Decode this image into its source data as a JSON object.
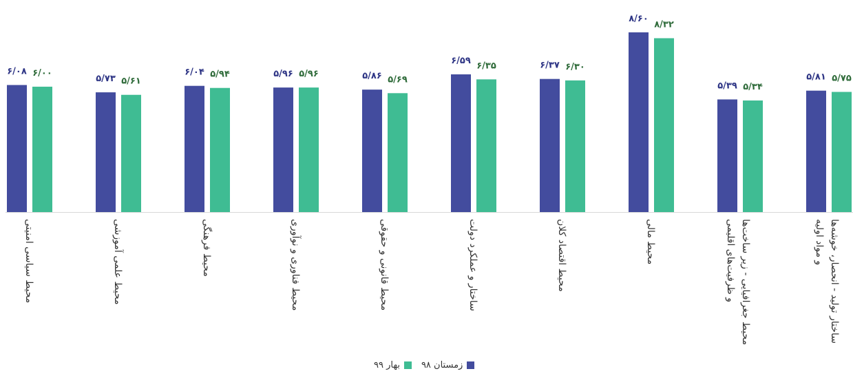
{
  "chart_data": {
    "type": "bar",
    "categories": [
      [
        "محیط سیاسی امنیتی"
      ],
      [
        "محیط علمی آموزشی"
      ],
      [
        "محیط فرهنگی"
      ],
      [
        "محیط فناوری و نوآوری"
      ],
      [
        "محیط قانونی و حقوقی"
      ],
      [
        "ساختار و عملکرد دولت"
      ],
      [
        "محیط اقتصاد کلان"
      ],
      [
        "محیط مالی"
      ],
      [
        "محیط جغرافیایی - زیر ساخت‌ها",
        "و ظرفیت‌های اقلیمی"
      ],
      [
        "ساختار تولید - انحصار، خوشه‌ها",
        "و مواد اولیه"
      ]
    ],
    "series": [
      {
        "name": "زمستان ۹۸",
        "color": "#434C9E",
        "values": [
          6.08,
          5.73,
          6.04,
          5.96,
          5.86,
          6.59,
          6.37,
          8.6,
          5.39,
          5.81
        ],
        "labels": [
          "۶/۰۸",
          "۵/۷۳",
          "۶/۰۴",
          "۵/۹۶",
          "۵/۸۶",
          "۶/۵۹",
          "۶/۳۷",
          "۸/۶۰",
          "۵/۳۹",
          "۵/۸۱"
        ]
      },
      {
        "name": "بهار ۹۹",
        "color": "#3FBC93",
        "values": [
          6.0,
          5.61,
          5.94,
          5.96,
          5.69,
          6.35,
          6.3,
          8.32,
          5.34,
          5.75
        ],
        "labels": [
          "۶/۰۰",
          "۵/۶۱",
          "۵/۹۴",
          "۵/۹۶",
          "۵/۶۹",
          "۶/۳۵",
          "۶/۳۰",
          "۸/۳۲",
          "۵/۳۴",
          "۵/۷۵"
        ]
      }
    ],
    "label_colors": [
      "#2E3585",
      "#2F6B3A"
    ],
    "ylim": [
      0,
      9
    ],
    "grid": false,
    "legend_position": "bottom-center"
  }
}
